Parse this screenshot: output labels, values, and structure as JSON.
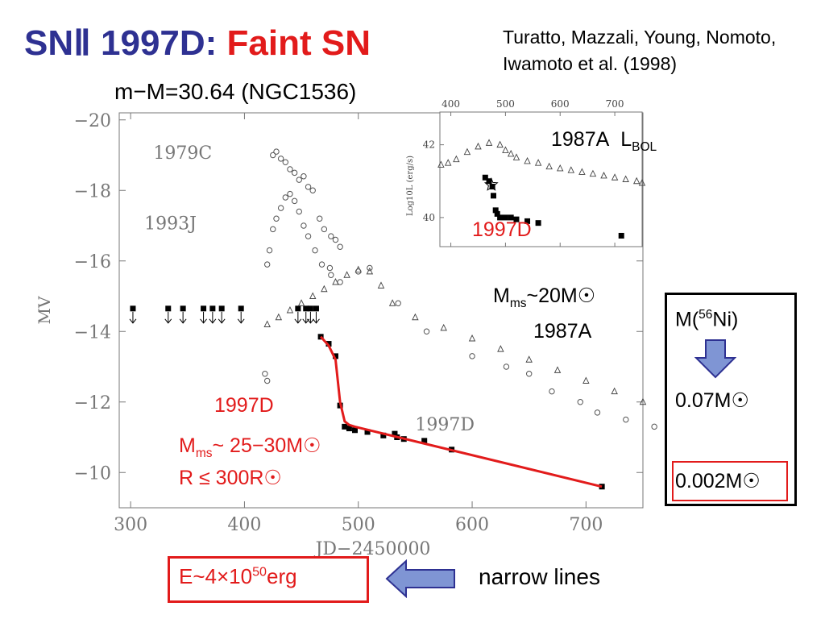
{
  "title": {
    "prefix": "SNⅡ 1997D: ",
    "highlight": "Faint SN"
  },
  "authors": "Turatto, Mazzali, Young, Nomoto, Iwamoto et al. (1998)",
  "distance": "m−M=30.64 (NGC1536)",
  "colors": {
    "title_blue": "#2e3192",
    "accent_red": "#e21b1b",
    "arrow_blue": "#7f95d4",
    "arrow_outline": "#2e3192"
  },
  "annotations": {
    "lbol_label": "1987A",
    "lbol_symbol": "L",
    "lbol_sub": "BOL",
    "inset_1997d": "1997D",
    "m87_prefix": "M",
    "m87_sub": "ms",
    "m87_value": "~20M☉",
    "m87_name": "1987A",
    "d97_label": "1997D",
    "d97_m_prefix": "M",
    "d97_m_sub": "ms",
    "d97_m_value": "~ 25−30M☉",
    "d97_r": "R ≤ 300R☉",
    "energy_prefix": "E~4×10",
    "energy_exp": "50",
    "energy_unit": "erg",
    "narrow_lines": "narrow lines",
    "ni_label_prefix": "M(",
    "ni_label_sup": "56",
    "ni_label_suffix": "Ni)",
    "ni_value_1": "0.07M☉",
    "ni_value_2": "0.002M☉"
  },
  "chart_data": [
    {
      "type": "scatter",
      "xlabel": "JD−2450000",
      "ylabel": "MV",
      "xlim": [
        290,
        750
      ],
      "ylim": [
        -9,
        -20.2
      ],
      "x_ticks": [
        300,
        400,
        500,
        600,
        700
      ],
      "y_ticks": [
        -20,
        -18,
        -16,
        -14,
        -12,
        -10
      ],
      "y_tick_labels": [
        "−20",
        "−18",
        "−16",
        "−14",
        "−12",
        "−10"
      ],
      "curve_labels": [
        {
          "text": "1979C",
          "x": 320,
          "y": -18.9
        },
        {
          "text": "1993J",
          "x": 312,
          "y": -16.9
        },
        {
          "text": "1997D",
          "x": 550,
          "y": -11.2
        }
      ],
      "series": [
        {
          "name": "1997D upper limits",
          "marker": "square-arrow",
          "x": [
            302,
            333,
            346,
            364,
            372,
            380,
            397,
            447,
            454,
            458,
            463
          ],
          "y": [
            -14.65,
            -14.65,
            -14.65,
            -14.65,
            -14.65,
            -14.65,
            -14.65,
            -14.65,
            -14.65,
            -14.65,
            -14.65
          ]
        },
        {
          "name": "1997D",
          "marker": "square",
          "x": [
            467,
            474,
            480,
            484,
            488,
            492,
            497,
            508,
            522,
            532,
            534,
            540,
            558,
            582,
            714
          ],
          "y": [
            -13.85,
            -13.65,
            -13.3,
            -11.9,
            -11.3,
            -11.25,
            -11.2,
            -11.15,
            -11.05,
            -11.1,
            -11.0,
            -10.95,
            -10.9,
            -10.65,
            -9.6
          ]
        },
        {
          "name": "1997D fit",
          "marker": "line",
          "color": "#e21b1b",
          "x": [
            467,
            474,
            480,
            484,
            488,
            492,
            497,
            714
          ],
          "y": [
            -13.85,
            -13.6,
            -13.2,
            -12.0,
            -11.45,
            -11.35,
            -11.3,
            -9.6
          ]
        },
        {
          "name": "1979C",
          "marker": "circle",
          "x": [
            425,
            428,
            432,
            436,
            440,
            444,
            448,
            452,
            456,
            460,
            466,
            470,
            476,
            480,
            484
          ],
          "y": [
            -19.0,
            -19.1,
            -18.9,
            -18.8,
            -18.6,
            -18.5,
            -18.3,
            -18.4,
            -18.1,
            -18.0,
            -17.2,
            -16.9,
            -16.7,
            -16.6,
            -16.4
          ]
        },
        {
          "name": "1993J",
          "marker": "circle",
          "x": [
            420,
            422,
            425,
            428,
            432,
            436,
            440,
            444,
            448,
            452,
            456,
            462,
            468,
            476,
            484
          ],
          "y": [
            -15.9,
            -16.3,
            -16.9,
            -17.2,
            -17.5,
            -17.8,
            -17.9,
            -17.7,
            -17.4,
            -17.0,
            -16.7,
            -16.3,
            -15.9,
            -15.6,
            -15.4
          ]
        },
        {
          "name": "1987A",
          "marker": "triangle",
          "x": [
            420,
            430,
            440,
            450,
            460,
            470,
            480,
            490,
            500,
            510,
            520,
            530,
            550,
            575,
            600,
            625,
            650,
            675,
            700,
            725,
            750
          ],
          "y": [
            -14.2,
            -14.4,
            -14.6,
            -14.8,
            -15.0,
            -15.2,
            -15.4,
            -15.6,
            -15.75,
            -15.7,
            -15.3,
            -14.8,
            -14.4,
            -14.1,
            -13.8,
            -13.5,
            -13.2,
            -12.9,
            -12.6,
            -12.3,
            -12.0
          ]
        },
        {
          "name": "other",
          "marker": "circle",
          "x": [
            418,
            420,
            475,
            500,
            510,
            535,
            560,
            600,
            630,
            650,
            670,
            695,
            710,
            735,
            760
          ],
          "y": [
            -12.8,
            -12.6,
            -15.8,
            -15.7,
            -15.8,
            -14.8,
            -14.0,
            -13.3,
            -13.0,
            -12.8,
            -12.3,
            -12.0,
            -11.7,
            -11.5,
            -11.3
          ]
        }
      ]
    },
    {
      "type": "scatter",
      "title": "",
      "xlabel": "",
      "ylabel": "Log10L (erg/s)",
      "xlim": [
        380,
        750
      ],
      "ylim": [
        39.2,
        42.9
      ],
      "x_ticks": [
        400,
        500,
        600,
        700
      ],
      "y_ticks": [
        40,
        42
      ],
      "series": [
        {
          "name": "1987A",
          "marker": "triangle",
          "x": [
            382,
            395,
            410,
            430,
            450,
            470,
            490,
            500,
            510,
            520,
            540,
            560,
            580,
            600,
            620,
            640,
            660,
            680,
            700,
            720,
            740,
            750
          ],
          "y": [
            41.45,
            41.5,
            41.6,
            41.8,
            41.95,
            42.05,
            42.0,
            41.85,
            41.75,
            41.65,
            41.55,
            41.5,
            41.4,
            41.35,
            41.3,
            41.25,
            41.2,
            41.15,
            41.1,
            41.05,
            41.0,
            40.95
          ]
        },
        {
          "name": "1997D",
          "marker": "square",
          "x": [
            463,
            470,
            476,
            478,
            482,
            485,
            490,
            500,
            510,
            520,
            540,
            560,
            712
          ],
          "y": [
            41.1,
            41.0,
            40.85,
            40.6,
            40.2,
            40.1,
            40.0,
            40.0,
            40.0,
            39.95,
            39.9,
            39.85,
            39.5
          ]
        },
        {
          "name": "1997D peak",
          "marker": "star",
          "x": [
            474
          ],
          "y": [
            40.9
          ]
        }
      ]
    }
  ]
}
